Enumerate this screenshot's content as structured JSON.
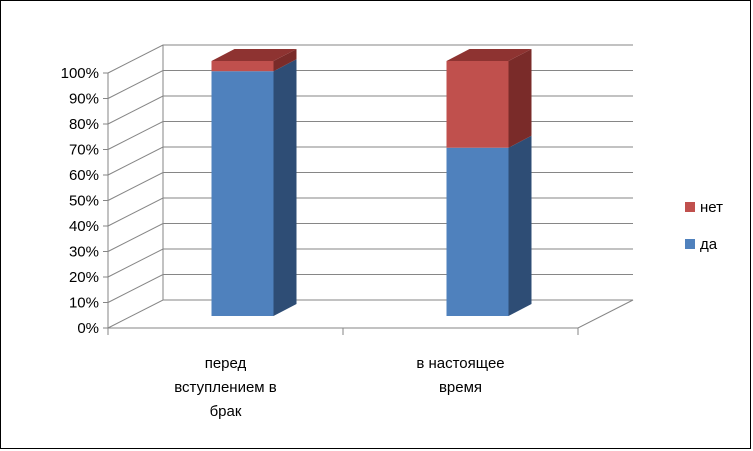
{
  "chart_data": {
    "type": "bar",
    "stacked": true,
    "three_d": true,
    "categories": [
      [
        "перед",
        "вступлением в",
        "брак"
      ],
      [
        "в настоящее",
        "время"
      ]
    ],
    "series": [
      {
        "name": "да",
        "values": [
          96,
          66
        ],
        "color": "#4F81BD",
        "top": "#3E6696",
        "side": "#2E4D75"
      },
      {
        "name": "нет",
        "values": [
          4,
          34
        ],
        "color": "#C0504D",
        "top": "#8E3331",
        "side": "#7A2B29"
      }
    ],
    "y_ticks": [
      "0%",
      "10%",
      "20%",
      "30%",
      "40%",
      "50%",
      "60%",
      "70%",
      "80%",
      "90%",
      "100%"
    ],
    "ylim": [
      0,
      100
    ],
    "grid": true,
    "legend": {
      "position": "right",
      "order": [
        "нет",
        "да"
      ]
    }
  }
}
